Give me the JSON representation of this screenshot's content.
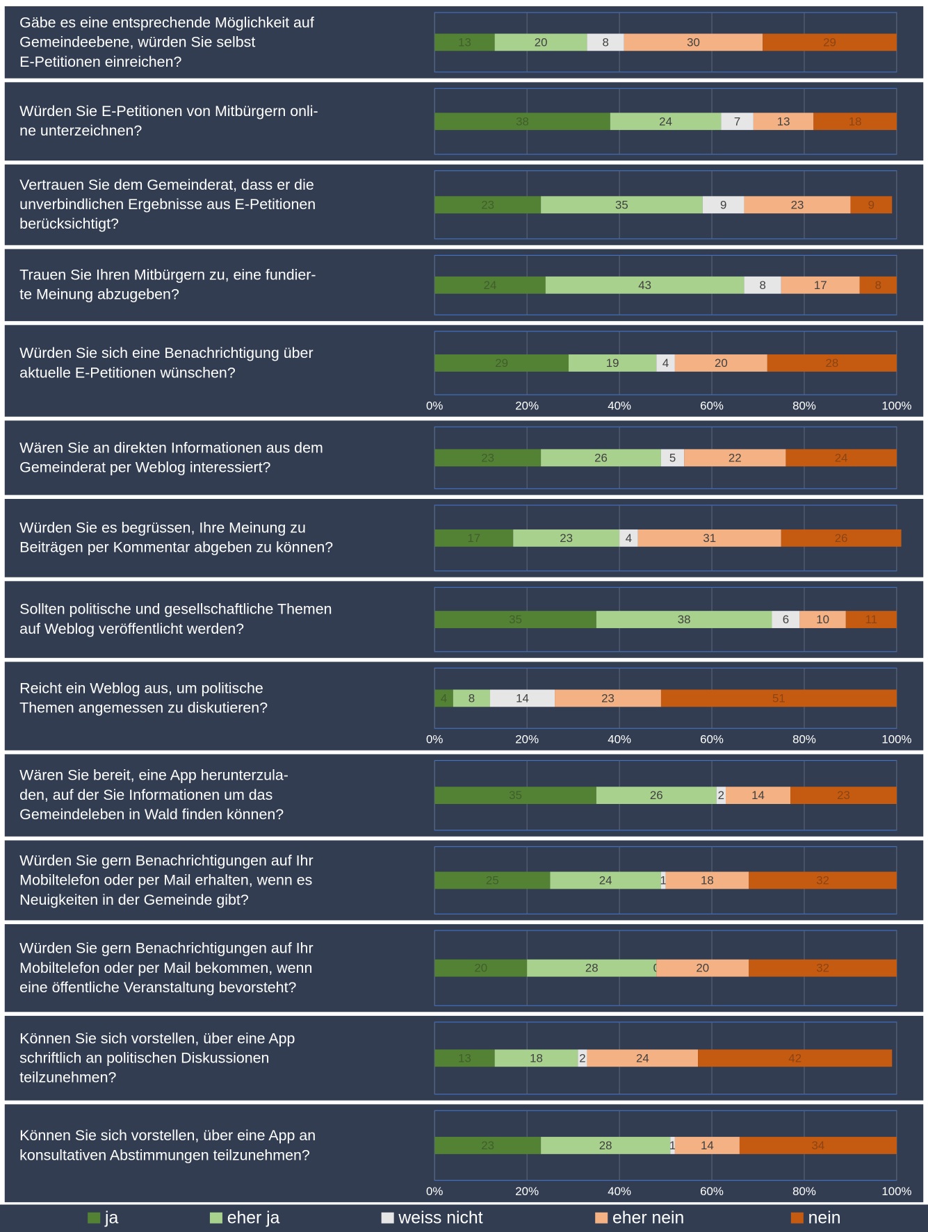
{
  "chart_data": {
    "type": "bar",
    "orientation": "horizontal",
    "stacked": true,
    "categories": [
      "Gäbe es eine entsprechende Möglichkeit auf\nGemeindeebene, würden Sie selbst\nE-Petitionen einreichen?",
      "Würden Sie E-Petitionen von Mitbürgern onli-\nne unterzeichnen?",
      "Vertrauen Sie dem Gemeinderat, dass er die\nunverbindlichen Ergebnisse aus E-Petitionen\nberücksichtigt?",
      "Trauen Sie Ihren Mitbürgern zu, eine fundier-\nte Meinung abzugeben?",
      "Würden Sie sich eine Benachrichtigung über\naktuelle E-Petitionen wünschen?",
      "Wären Sie an direkten Informationen aus dem\nGemeinderat per Weblog interessiert?",
      "Würden Sie es begrüssen, Ihre Meinung zu\nBeiträgen per Kommentar abgeben zu können?",
      "Sollten politische und gesellschaftliche Themen\nauf Weblog veröffentlicht werden?",
      "Reicht ein Weblog aus, um politische\nThemen angemessen zu diskutieren?",
      "Wären Sie bereit, eine App herunterzula-\nden, auf der Sie Informationen um das\nGemeindeleben in Wald finden können?",
      "Würden Sie gern Benachrichtigungen auf Ihr\nMobiltelefon oder per Mail erhalten, wenn es\nNeuigkeiten in der Gemeinde gibt?",
      "Würden Sie gern Benachrichtigungen auf Ihr\nMobiltelefon oder per Mail bekommen, wenn\neine öffentliche Veranstaltung bevorsteht?",
      "Können Sie sich vorstellen, über eine App\nschriftlich an politischen Diskussionen\nteilzunehmen?",
      "Können Sie sich vorstellen, über eine App an\nkonsultativen Abstimmungen teilzunehmen?"
    ],
    "series": [
      {
        "name": "ja",
        "color": "#548235",
        "values": [
          13,
          38,
          23,
          24,
          29,
          23,
          17,
          35,
          4,
          35,
          25,
          20,
          13,
          23
        ]
      },
      {
        "name": "eher ja",
        "color": "#a9d18e",
        "values": [
          20,
          24,
          35,
          43,
          19,
          26,
          23,
          38,
          8,
          26,
          24,
          28,
          18,
          28
        ]
      },
      {
        "name": "weiss nicht",
        "color": "#e7e6e6",
        "values": [
          8,
          7,
          9,
          8,
          4,
          5,
          4,
          6,
          14,
          2,
          1,
          0,
          2,
          1
        ]
      },
      {
        "name": "eher nein",
        "color": "#f4b183",
        "values": [
          30,
          13,
          23,
          17,
          20,
          22,
          31,
          10,
          23,
          14,
          18,
          20,
          24,
          14
        ]
      },
      {
        "name": "nein",
        "color": "#c55a11",
        "values": [
          29,
          18,
          9,
          8,
          28,
          24,
          26,
          11,
          51,
          23,
          32,
          32,
          42,
          34
        ]
      }
    ],
    "xlim": [
      0,
      100
    ],
    "xticks": [
      {
        "value": 0,
        "label": "0%"
      },
      {
        "value": 20,
        "label": "20%"
      },
      {
        "value": 40,
        "label": "40%"
      },
      {
        "value": 60,
        "label": "60%"
      },
      {
        "value": 80,
        "label": "80%"
      },
      {
        "value": 100,
        "label": "100%"
      }
    ],
    "grid": true,
    "legend": "bottom"
  }
}
